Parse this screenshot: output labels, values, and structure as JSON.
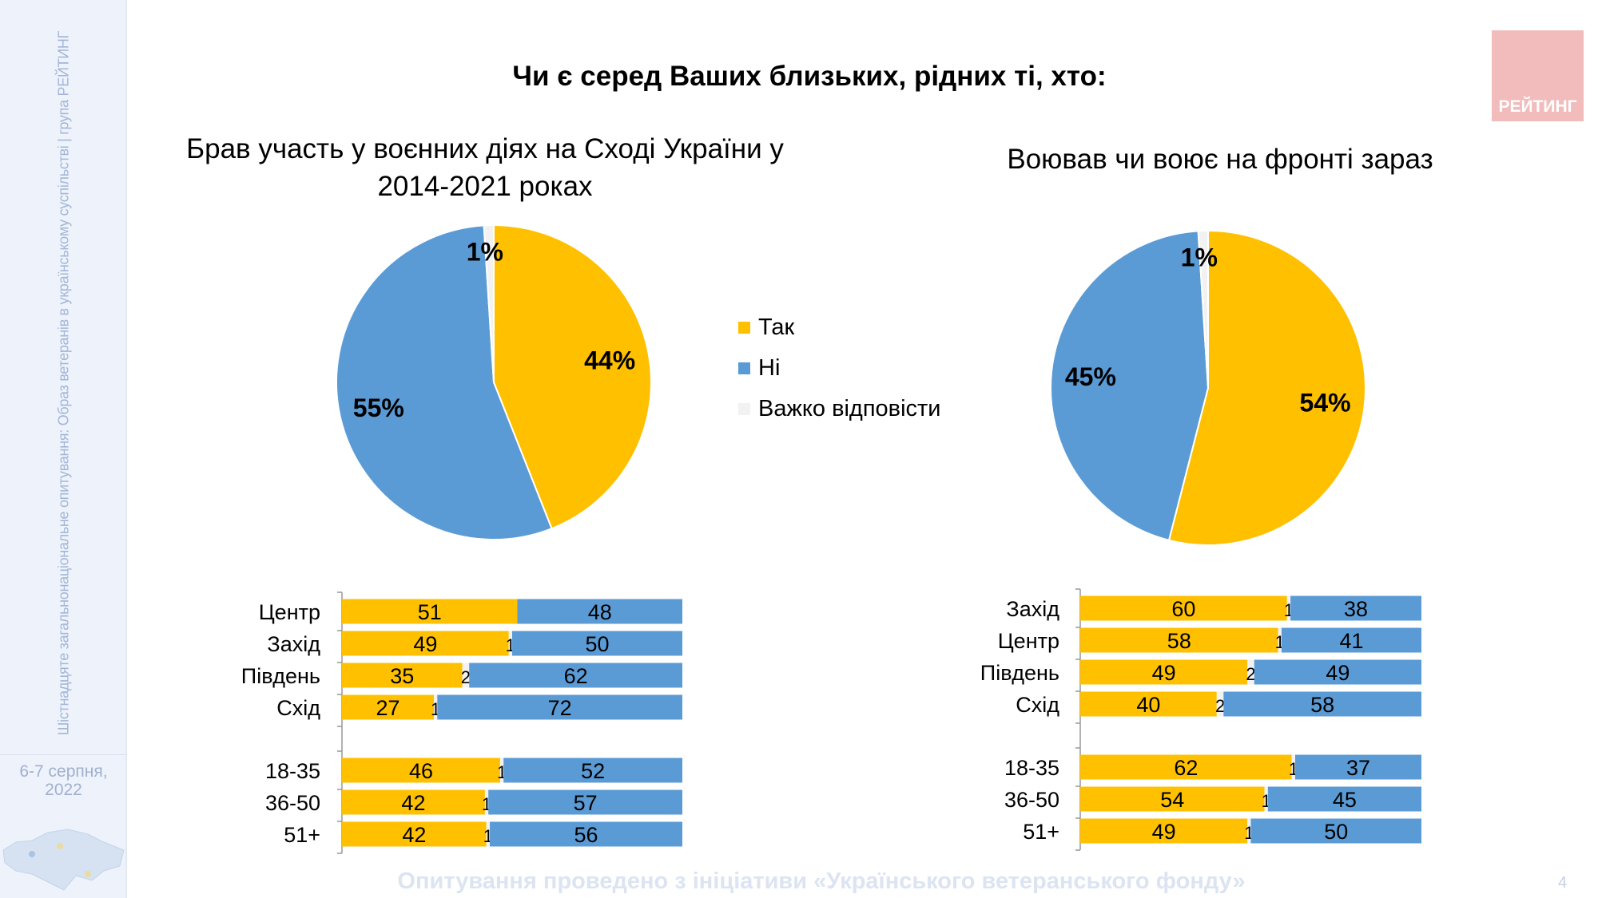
{
  "sidebar": {
    "vertical_text": "Шістнадцяте загальнонаціональне опитування: Образ ветеранів в українському суспільстві | група РЕЙТИНГ",
    "date_line1": "6-7 серпня,",
    "date_line2": "2022"
  },
  "title": "Чи є серед Ваших близьких, рідних ті, хто:",
  "logo": "РЕЙТИНГ",
  "footer": "Опитування проведено з ініціативи «Українського ветеранського фонду»",
  "page_number": "4",
  "colors": {
    "yes": "#ffc000",
    "no": "#5b9bd5",
    "hard": "#f2f2f2"
  },
  "legend": [
    "Так",
    "Ні",
    "Важко відповісти"
  ],
  "chart_data": [
    {
      "type": "pie",
      "title_line1": "Брав участь у воєнних діях на Сході України у",
      "title_line2": "2014-2021 роках",
      "labels": [
        "Так",
        "Ні",
        "Важко відповісти"
      ],
      "values": [
        44,
        55,
        1
      ]
    },
    {
      "type": "pie",
      "title_line1": "Воював чи воює на фронті зараз",
      "title_line2": "",
      "labels": [
        "Так",
        "Ні",
        "Важко відповісти"
      ],
      "values": [
        54,
        45,
        1
      ]
    },
    {
      "type": "bar",
      "stacked": true,
      "orientation": "horizontal",
      "categories": [
        "Центр",
        "Захід",
        "Південь",
        "Схід",
        "18-35",
        "36-50",
        "51+"
      ],
      "series": [
        {
          "name": "Так",
          "values": [
            51,
            49,
            35,
            27,
            46,
            42,
            42
          ]
        },
        {
          "name": "Важко відповісти",
          "values": [
            null,
            1,
            2,
            1,
            1,
            1,
            1
          ]
        },
        {
          "name": "Ні",
          "values": [
            48,
            50,
            62,
            72,
            52,
            57,
            56
          ]
        }
      ]
    },
    {
      "type": "bar",
      "stacked": true,
      "orientation": "horizontal",
      "categories": [
        "Захід",
        "Центр",
        "Південь",
        "Схід",
        "18-35",
        "36-50",
        "51+"
      ],
      "series": [
        {
          "name": "Так",
          "values": [
            60,
            58,
            49,
            40,
            62,
            54,
            49
          ]
        },
        {
          "name": "Важко відповісти",
          "values": [
            1,
            1,
            2,
            2,
            1,
            1,
            1
          ]
        },
        {
          "name": "Ні",
          "values": [
            38,
            41,
            49,
            58,
            37,
            45,
            50
          ]
        }
      ]
    }
  ]
}
